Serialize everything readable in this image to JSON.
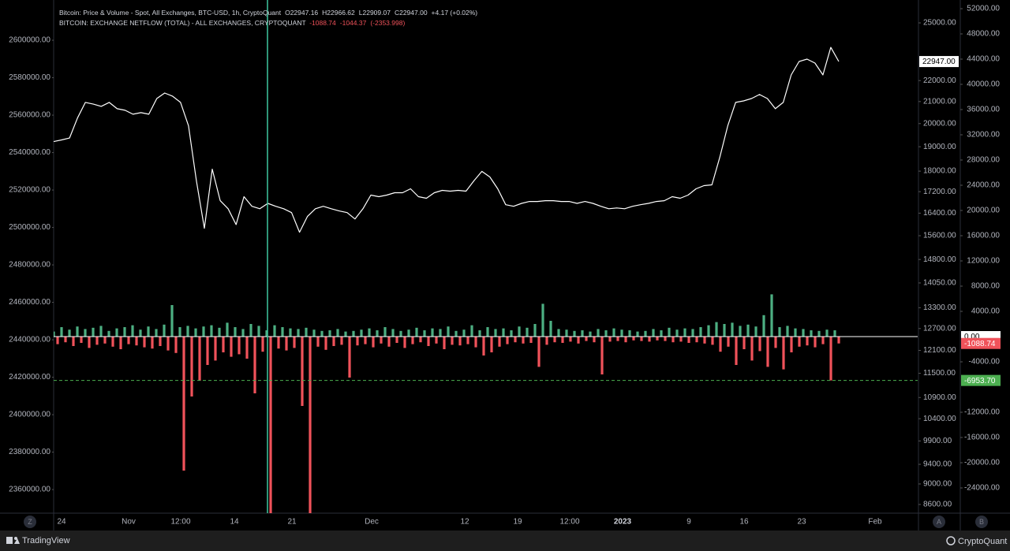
{
  "chart_data": {
    "type": "combo",
    "series": [
      {
        "name": "Bitcoin: Price & Volume - Spot, All Exchanges, BTC-USD, 1h, CryptoQuant",
        "legend_values": [
          "O22947.16",
          "H22966.62",
          "L22909.07",
          "C22947.00",
          "+4.17 (+0.02%)"
        ],
        "type": "line",
        "axis": "y2",
        "color": "#ffffff",
        "values": [
          19220,
          19290,
          19370,
          20250,
          20960,
          20880,
          20780,
          20960,
          20670,
          20600,
          20420,
          20490,
          20420,
          21140,
          21400,
          21250,
          20960,
          19900,
          17620,
          15860,
          18080,
          16860,
          16560,
          15990,
          17010,
          16650,
          16560,
          16760,
          16650,
          16560,
          16420,
          15720,
          16280,
          16560,
          16650,
          16560,
          16480,
          16420,
          16190,
          16560,
          17070,
          17010,
          17070,
          17160,
          17160,
          17310,
          17010,
          16950,
          17160,
          17250,
          17220,
          17250,
          17220,
          17620,
          17990,
          17770,
          17310,
          16710,
          16650,
          16760,
          16830,
          16830,
          16860,
          16860,
          16830,
          16830,
          16760,
          16830,
          16760,
          16650,
          16560,
          16590,
          16560,
          16650,
          16710,
          16760,
          16830,
          16860,
          17010,
          16950,
          17070,
          17310,
          17430,
          17460,
          18560,
          19900,
          20960,
          21030,
          21140,
          21330,
          21140,
          20670,
          20960,
          22280,
          22950,
          23070,
          22870,
          22280,
          23680,
          22950
        ]
      },
      {
        "name": "BITCOIN: EXCHANGE NETFLOW (TOTAL) - ALL EXCHANGES, CRYPTOQUANT",
        "legend_values": [
          "-1088.74",
          "-1044.37",
          "(-2353.998)"
        ],
        "type": "bar",
        "axis": "y3",
        "color_positive": "#4caf82",
        "color_negative": "#f0525a",
        "values": [
          800,
          -1200,
          1500,
          -900,
          1100,
          -1500,
          1600,
          -1000,
          1200,
          -1800,
          1400,
          -1300,
          1700,
          -1100,
          900,
          -1600,
          1300,
          -2000,
          1500,
          -1200,
          1800,
          -1400,
          1100,
          -1700,
          1600,
          -1900,
          1200,
          -1500,
          1900,
          -2200,
          5000,
          -2600,
          1500,
          -21250,
          1700,
          -9500,
          1300,
          -7000,
          1600,
          -4500,
          1800,
          -3800,
          1400,
          -2500,
          2200,
          -3200,
          1500,
          -2800,
          1200,
          -3500,
          2000,
          -9000,
          1700,
          -2400,
          1000,
          -28000,
          1800,
          -1900,
          1500,
          -2200,
          1300,
          -1800,
          1200,
          -11000,
          1400,
          -28000,
          1100,
          -1600,
          900,
          -2100,
          1000,
          -1500,
          1200,
          -1300,
          800,
          -6500,
          900,
          -1400,
          1100,
          -1200,
          1300,
          -1700,
          1000,
          -1100,
          1500,
          -1600,
          1200,
          -1000,
          900,
          -1800,
          1100,
          -1200,
          1400,
          -900,
          1000,
          -1500,
          1300,
          -1100,
          1200,
          -2000,
          1600,
          -1300,
          900,
          -1400,
          1100,
          -1200,
          1800,
          -1700,
          1000,
          -3000,
          1500,
          -2500,
          1200,
          -1600,
          1300,
          -1200,
          1000,
          -900,
          1600,
          -1100,
          1400,
          -1000,
          2000,
          -4800,
          5200,
          -1300,
          2500,
          -900,
          1200,
          -1000,
          1100,
          -800,
          900,
          -1100,
          1000,
          -700,
          800,
          -900,
          1200,
          -6000,
          1000,
          -800,
          1300,
          -700,
          1100,
          -900,
          1000,
          -600,
          800,
          -700,
          900,
          -800,
          1200,
          -600,
          1000,
          -700,
          1400,
          -900,
          1100,
          -800,
          1300,
          -1000,
          1200,
          -900,
          1500,
          -1100,
          1800,
          -1300,
          2300,
          -2400,
          2000,
          -1600,
          2200,
          -4500,
          1700,
          -2000,
          1900,
          -3800,
          1600,
          -2300,
          3400,
          -4800,
          6700,
          -1800,
          1500,
          -5200,
          1700,
          -2500,
          1300,
          -1600,
          1200,
          -1400,
          1000,
          -1700,
          900,
          -1200,
          1100,
          -6953.7,
          1000,
          -1088.74
        ]
      }
    ],
    "x_labels": [
      "24",
      "Nov",
      "12:00",
      "14",
      "21",
      "Dec",
      "12",
      "19",
      "12:00",
      "2023",
      "9",
      "16",
      "23",
      "Feb"
    ],
    "ylim": [
      2347400,
      2621500
    ],
    "yticks": [
      {
        "value": 2600000,
        "label": "2600000.00"
      },
      {
        "value": 2580000,
        "label": "2580000.00"
      },
      {
        "value": 2560000,
        "label": "2560000.00"
      },
      {
        "value": 2540000,
        "label": "2540000.00"
      },
      {
        "value": 2520000,
        "label": "2520000.00"
      },
      {
        "value": 2500000,
        "label": "2500000.00"
      },
      {
        "value": 2480000,
        "label": "2480000.00"
      },
      {
        "value": 2460000,
        "label": "2460000.00"
      },
      {
        "value": 2440000,
        "label": "2440000.00"
      },
      {
        "value": 2420000,
        "label": "2420000.00"
      },
      {
        "value": 2400000,
        "label": "2400000.00"
      },
      {
        "value": 2380000,
        "label": "2380000.00"
      },
      {
        "value": 2360000,
        "label": "2360000.00"
      }
    ],
    "y2lim": [
      8436,
      26300
    ],
    "y2scale": "log",
    "y2ticks": [
      {
        "value": 25000,
        "label": "25000.00"
      },
      {
        "value": 22000,
        "label": "22000.00"
      },
      {
        "value": 21000,
        "label": "21000.00"
      },
      {
        "value": 20000,
        "label": "20000.00"
      },
      {
        "value": 19000,
        "label": "19000.00"
      },
      {
        "value": 18000,
        "label": "18000.00"
      },
      {
        "value": 17200,
        "label": "17200.00"
      },
      {
        "value": 16400,
        "label": "16400.00"
      },
      {
        "value": 15600,
        "label": "15600.00"
      },
      {
        "value": 14800,
        "label": "14800.00"
      },
      {
        "value": 14050,
        "label": "14050.00"
      },
      {
        "value": 13300,
        "label": "13300.00"
      },
      {
        "value": 12700,
        "label": "12700.00"
      },
      {
        "value": 12100,
        "label": "12100.00"
      },
      {
        "value": 11500,
        "label": "11500.00"
      },
      {
        "value": 10900,
        "label": "10900.00"
      },
      {
        "value": 10400,
        "label": "10400.00"
      },
      {
        "value": 9900,
        "label": "9900.00"
      },
      {
        "value": 9400,
        "label": "9400.00"
      },
      {
        "value": 9000,
        "label": "9000.00"
      },
      {
        "value": 8600,
        "label": "8600.00"
      }
    ],
    "y3lim": [
      -28000,
      53375
    ],
    "y3ticks": [
      {
        "value": 52000,
        "label": "52000.00"
      },
      {
        "value": 48000,
        "label": "48000.00"
      },
      {
        "value": 44000,
        "label": "44000.00"
      },
      {
        "value": 40000,
        "label": "40000.00"
      },
      {
        "value": 36000,
        "label": "36000.00"
      },
      {
        "value": 32000,
        "label": "32000.00"
      },
      {
        "value": 28000,
        "label": "28000.00"
      },
      {
        "value": 24000,
        "label": "24000.00"
      },
      {
        "value": 20000,
        "label": "20000.00"
      },
      {
        "value": 16000,
        "label": "16000.00"
      },
      {
        "value": 12000,
        "label": "12000.00"
      },
      {
        "value": 8000,
        "label": "8000.00"
      },
      {
        "value": 4000,
        "label": "4000.00"
      },
      {
        "value": -4000,
        "label": "-4000.00"
      },
      {
        "value": -12000,
        "label": "-12000.00"
      },
      {
        "value": -16000,
        "label": "-16000.00"
      },
      {
        "value": -20000,
        "label": "-20000.00"
      },
      {
        "value": -24000,
        "label": "-24000.00"
      }
    ],
    "markers": [
      {
        "value": 22947,
        "label": "22947.00",
        "axis": "y2",
        "color": "#ffffff",
        "text_color": "#000000"
      },
      {
        "value": 0,
        "label": "0.00",
        "axis": "y3",
        "color": "#ffffff",
        "text_color": "#000000",
        "line": "solid"
      },
      {
        "value": -1088.74,
        "label": "-1088.74",
        "axis": "y3",
        "color": "#f0525a",
        "text_color": "#ffffff"
      },
      {
        "value": -6953.7,
        "label": "-6953.70",
        "axis": "y3",
        "color": "#4caf50",
        "text_color": "#ffffff",
        "line": "dashed"
      }
    ]
  },
  "ui": {
    "buttons": [
      "Z",
      "A",
      "B"
    ],
    "footer_left": "TradingView",
    "footer_right": "CryptoQuant"
  }
}
